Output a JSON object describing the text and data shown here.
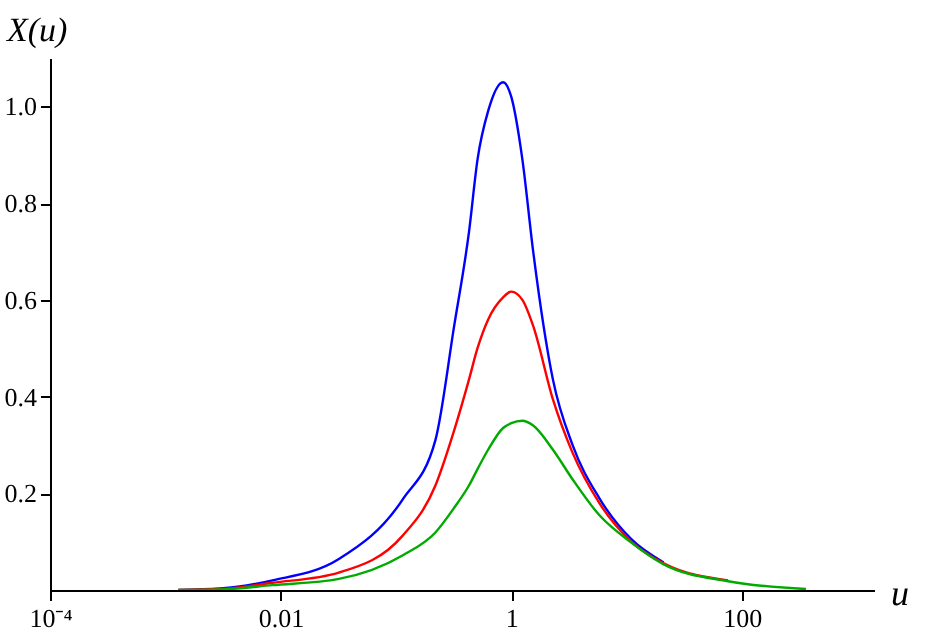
{
  "chart_data": {
    "type": "line",
    "xlabel": "u",
    "ylabel": "X(u)",
    "log": "x",
    "xlim": [
      0.0001,
      1400
    ],
    "xticks": [
      {
        "value": 0.0001,
        "label": "10⁻⁴"
      },
      0.01,
      1,
      100
    ],
    "ylim": [
      0,
      1.1
    ],
    "yticks": [
      0.2,
      0.4,
      0.6,
      0.8,
      {
        "value": 1.0,
        "label": "1.0"
      }
    ],
    "grid": false,
    "legend": false,
    "marker": "none",
    "line_style": "solid",
    "x": [
      0.0013,
      0.003,
      0.0085,
      0.032,
      0.115,
      0.22,
      0.32,
      0.43,
      0.51,
      0.63,
      0.85,
      1,
      1.25,
      1.55,
      2.3,
      3.4,
      5.8,
      11,
      21,
      76,
      360
    ],
    "series": [
      {
        "color": "#0000ff",
        "values": [
          0,
          0.003,
          0.02,
          0.064,
          0.188,
          0.31,
          0.546,
          0.74,
          0.89,
          0.99,
          1.05,
          1.02,
          0.89,
          0.7,
          0.435,
          0.3,
          0.19,
          0.105,
          0.057,
          null,
          null
        ]
      },
      {
        "color": "#ff0000",
        "values": [
          0,
          0.002,
          0.015,
          0.036,
          0.113,
          0.216,
          0.33,
          0.435,
          0.5,
          0.559,
          0.605,
          0.617,
          0.6,
          0.546,
          0.394,
          0.284,
          0.18,
          0.1,
          0.055,
          0.02,
          null
        ]
      },
      {
        "color": "#00aa00",
        "values": [
          0,
          0.001,
          0.01,
          0.023,
          0.072,
          0.119,
          0.17,
          0.216,
          0.25,
          0.29,
          0.335,
          0.345,
          0.35,
          0.34,
          0.29,
          0.229,
          0.155,
          0.098,
          0.053,
          0.018,
          0.002
        ]
      }
    ]
  }
}
